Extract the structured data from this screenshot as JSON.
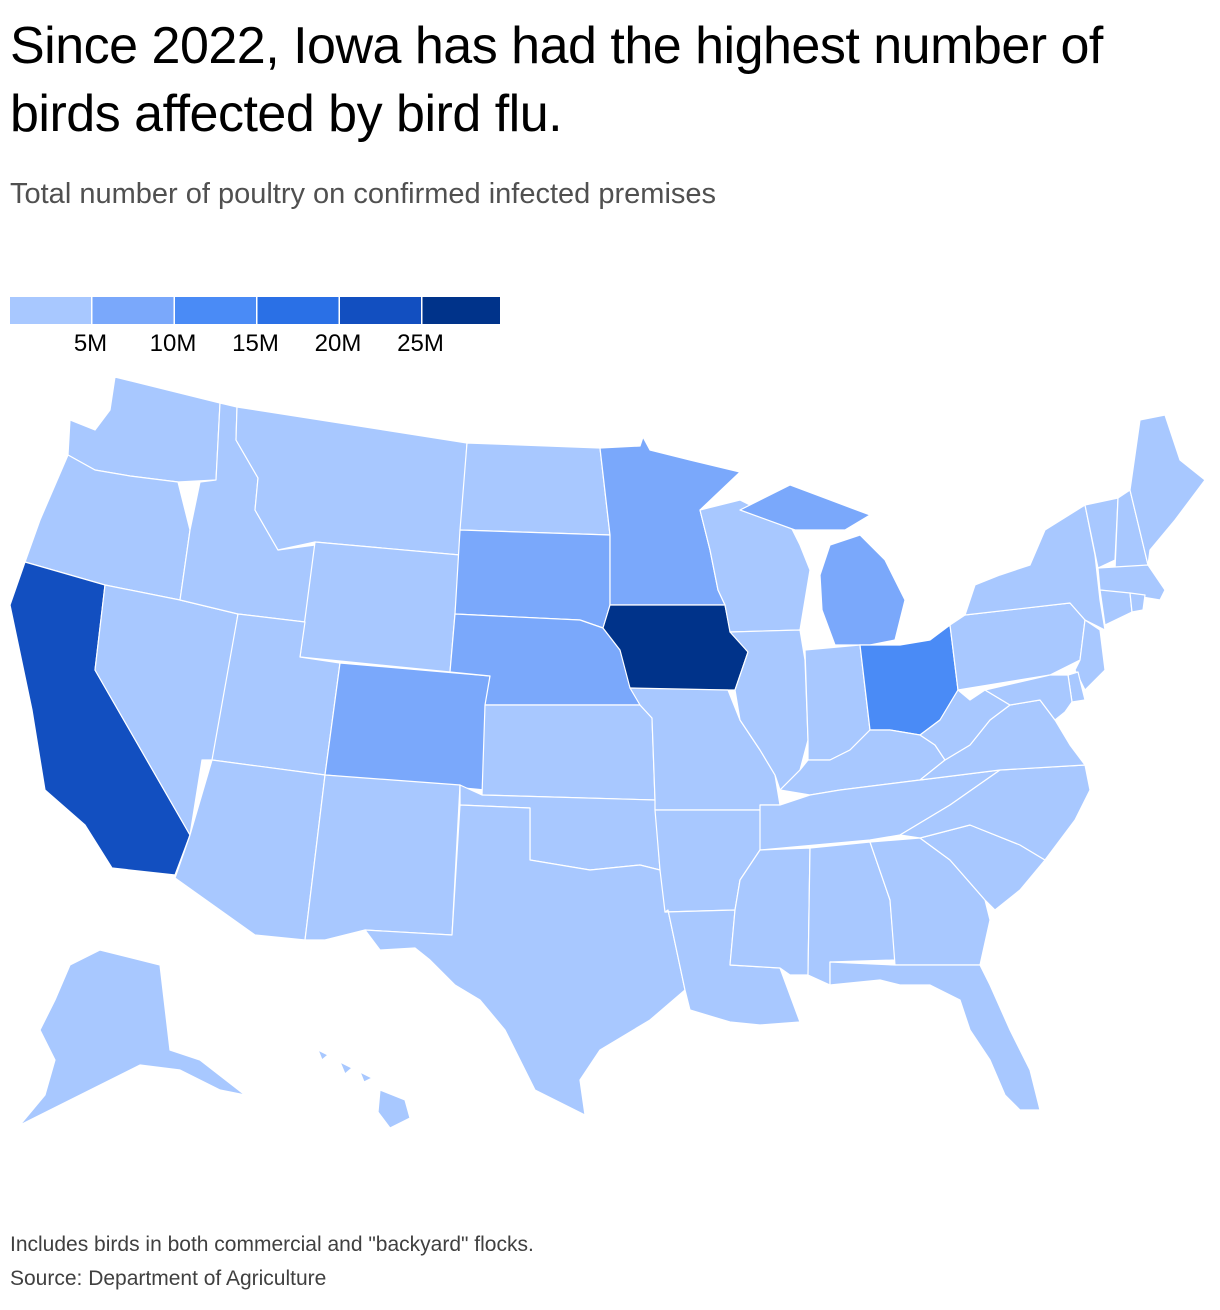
{
  "header": {
    "title": "Since 2022, Iowa has had the highest number of birds affected by bird flu.",
    "subtitle": "Total number of poultry on confirmed infected premises"
  },
  "legend": {
    "colors": [
      "#a8c8ff",
      "#7aa8fb",
      "#4a8bf6",
      "#2a70e6",
      "#124fc0",
      "#00338a"
    ],
    "ticks": [
      "5M",
      "10M",
      "15M",
      "20M",
      "25M"
    ],
    "thresholds": [
      5000000,
      10000000,
      15000000,
      20000000,
      25000000
    ]
  },
  "map": {
    "bins": {
      "lightest": "#a8c8ff",
      "light": "#7aa8fb",
      "medium": "#4a8bf6",
      "dark": "#124fc0",
      "darkest": "#00338a"
    },
    "states": {
      "WA": "lightest",
      "OR": "lightest",
      "CA": "dark",
      "NV": "lightest",
      "ID": "lightest",
      "MT": "lightest",
      "WY": "lightest",
      "UT": "lightest",
      "AZ": "lightest",
      "CO": "light",
      "NM": "lightest",
      "ND": "lightest",
      "SD": "light",
      "NE": "light",
      "KS": "lightest",
      "OK": "lightest",
      "TX": "lightest",
      "MN": "light",
      "IA": "darkest",
      "MO": "lightest",
      "AR": "lightest",
      "LA": "lightest",
      "WI": "lightest",
      "IL": "lightest",
      "MI": "light",
      "IN": "lightest",
      "OH": "medium",
      "KY": "lightest",
      "TN": "lightest",
      "MS": "lightest",
      "AL": "lightest",
      "GA": "lightest",
      "FL": "lightest",
      "SC": "lightest",
      "NC": "lightest",
      "VA": "lightest",
      "WV": "lightest",
      "PA": "lightest",
      "NY": "lightest",
      "VT": "lightest",
      "NH": "lightest",
      "ME": "lightest",
      "MA": "lightest",
      "CT": "lightest",
      "RI": "lightest",
      "NJ": "lightest",
      "DE": "lightest",
      "MD": "lightest",
      "AK": "lightest",
      "HI": "lightest"
    }
  },
  "footer": {
    "note": "Includes birds in both commercial and \"backyard\" flocks.",
    "source": "Source: Department of Agriculture"
  }
}
